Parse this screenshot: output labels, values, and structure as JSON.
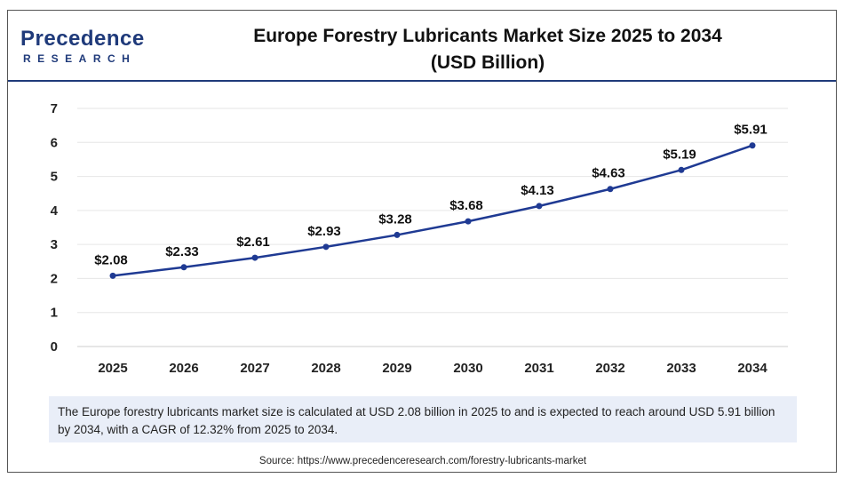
{
  "logo": {
    "main": "Precedence",
    "sub": "RESEARCH"
  },
  "header": {
    "title_line1": "Europe Forestry Lubricants Market Size 2025 to 2034",
    "title_line2": "(USD Billion)"
  },
  "chart_data": {
    "type": "line",
    "title": "Europe Forestry Lubricants Market Size 2025 to 2034 (USD Billion)",
    "xlabel": "",
    "ylabel": "",
    "categories": [
      "2025",
      "2026",
      "2027",
      "2028",
      "2029",
      "2030",
      "2031",
      "2032",
      "2033",
      "2034"
    ],
    "values": [
      2.08,
      2.33,
      2.61,
      2.93,
      3.28,
      3.68,
      4.13,
      4.63,
      5.19,
      5.91
    ],
    "data_labels": [
      "$2.08",
      "$2.33",
      "$2.61",
      "$2.93",
      "$3.28",
      "$3.68",
      "$4.13",
      "$4.63",
      "$5.19",
      "$5.91"
    ],
    "ylim": [
      0,
      7
    ],
    "yticks": [
      "0",
      "1",
      "2",
      "3",
      "4",
      "5",
      "6",
      "7"
    ],
    "grid": true,
    "line_color": "#1f3a93"
  },
  "description": "The Europe forestry lubricants market size is calculated at USD 2.08 billion in 2025 to and is expected to reach around USD 5.91 billion by 2034, with a CAGR of 12.32% from 2025 to 2034.",
  "source": "Source: https://www.precedenceresearch.com/forestry-lubricants-market"
}
